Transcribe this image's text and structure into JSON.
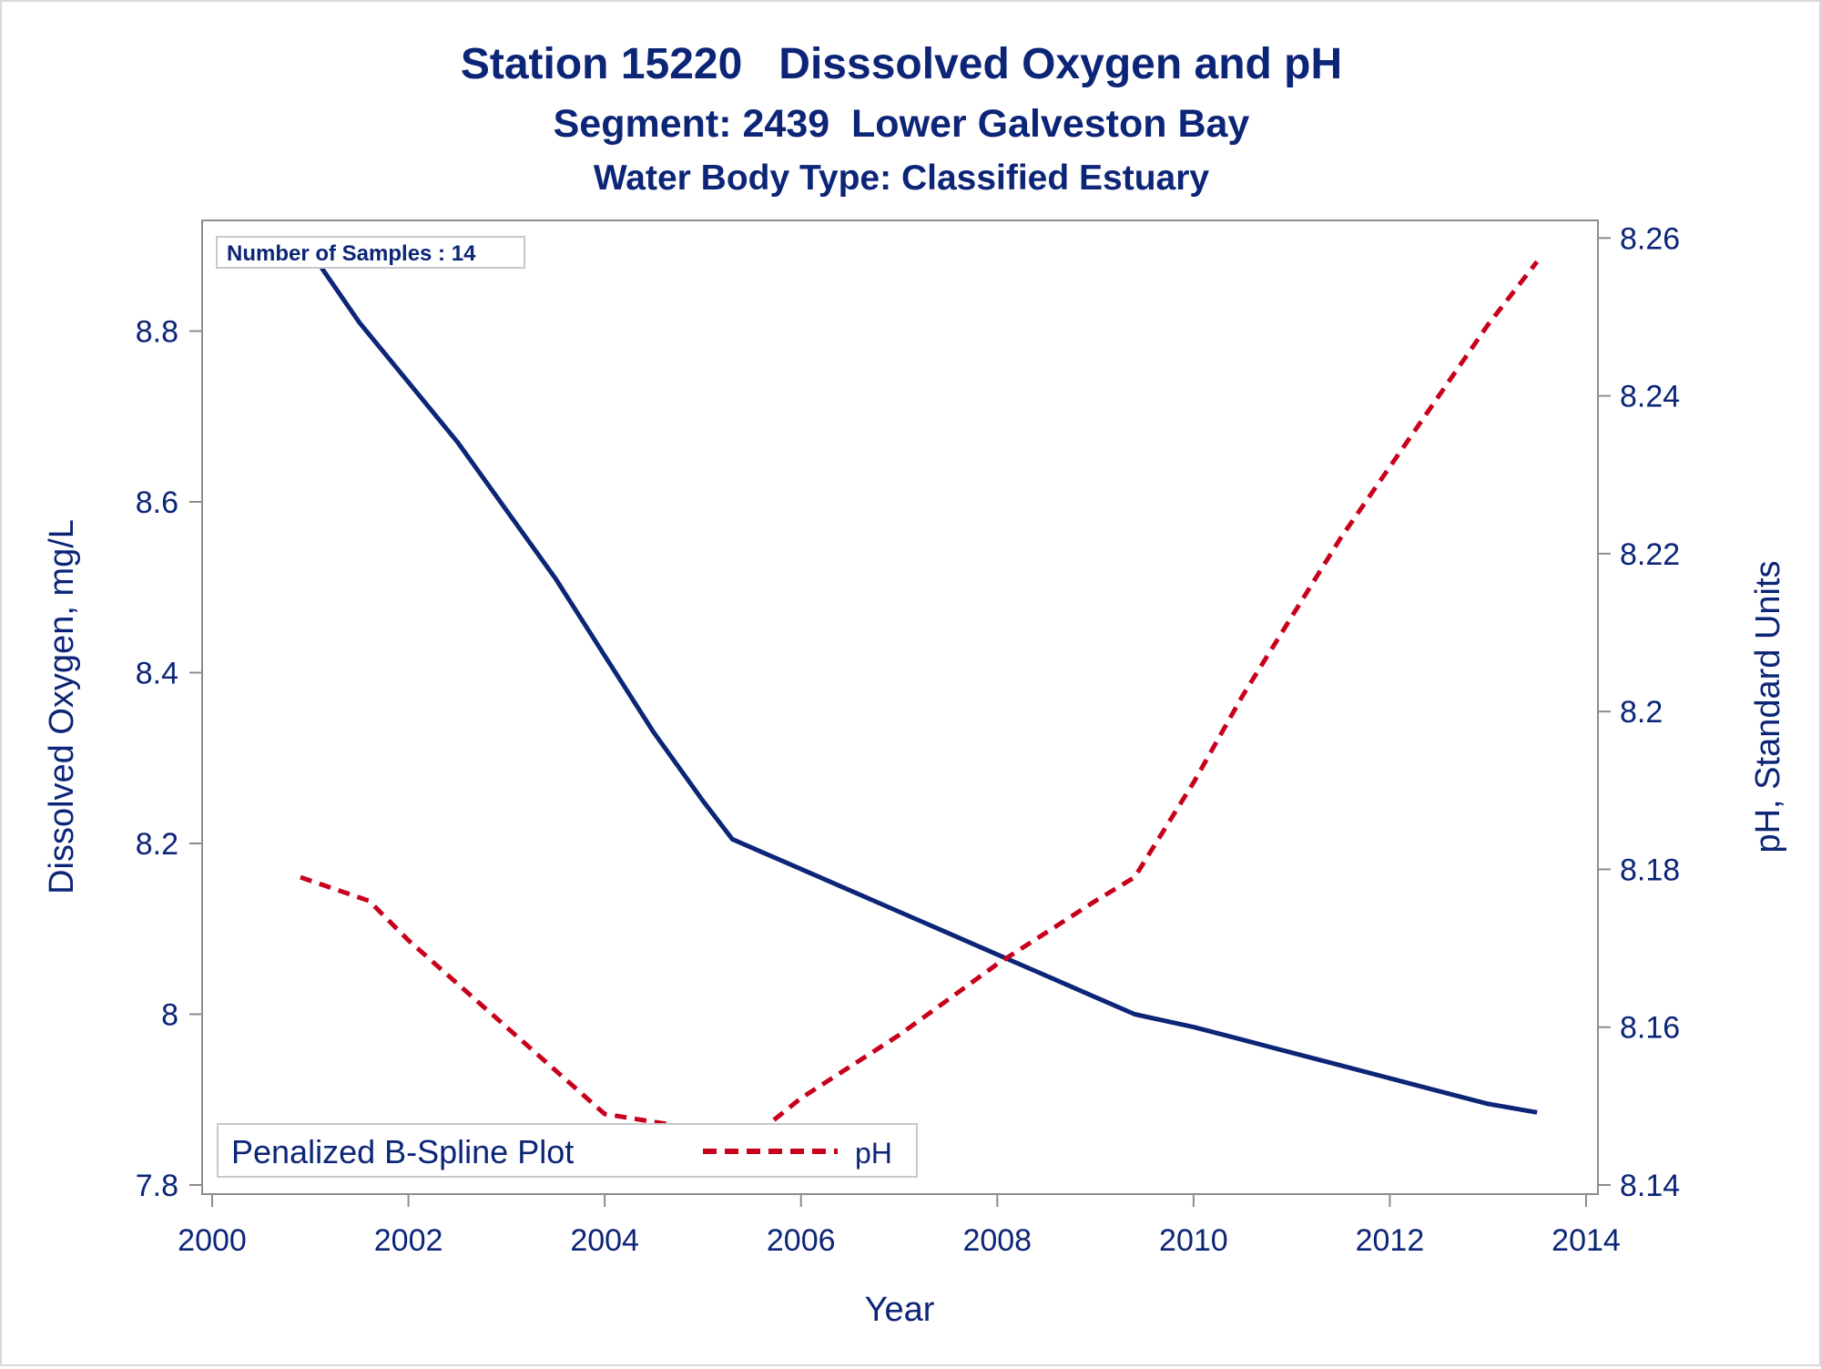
{
  "titles": {
    "line1": "Station 15220   Disssolved Oxygen and pH",
    "line2": "Segment: 2439  Lower Galveston Bay",
    "line3": "Water Body Type: Classified Estuary"
  },
  "inset_label": "Number of Samples : 14",
  "legend": {
    "title": "Penalized B-Spline Plot",
    "item_label": "pH"
  },
  "colors": {
    "text": "#0c2577",
    "do_line": "#0c2577",
    "ph_line": "#c8001b",
    "axis": "#8c8c8c"
  },
  "chart_data": {
    "type": "line",
    "title": "Station 15220   Disssolved Oxygen and pH",
    "xlabel": "Year",
    "ylabel": "Dissolved Oxygen, mg/L",
    "y2label": "pH, Standard Units",
    "xlim": [
      2000,
      2014
    ],
    "ylim": [
      7.8,
      8.92
    ],
    "y2lim": [
      8.14,
      8.262
    ],
    "x_ticks": [
      "2000",
      "2002",
      "2004",
      "2006",
      "2008",
      "2010",
      "2012",
      "2014"
    ],
    "y_ticks": [
      "7.8",
      "8",
      "8.2",
      "8.4",
      "8.6",
      "8.8"
    ],
    "y2_ticks": [
      "8.14",
      "8.16",
      "8.18",
      "8.2",
      "8.22",
      "8.24",
      "8.26"
    ],
    "legend_position": "bottom-left inside",
    "series": [
      {
        "name": "Dissolved Oxygen",
        "axis": "left",
        "style": "solid",
        "x": [
          2000.9,
          2001.5,
          2002.0,
          2002.5,
          2003.0,
          2003.5,
          2004.0,
          2004.5,
          2005.0,
          2005.3,
          2005.6,
          2006.0,
          2006.5,
          2007.0,
          2007.5,
          2008.0,
          2008.5,
          2009.0,
          2009.4,
          2010.0,
          2010.5,
          2011.0,
          2011.5,
          2012.0,
          2012.5,
          2013.0,
          2013.5
        ],
        "values": [
          8.91,
          8.81,
          8.74,
          8.67,
          8.59,
          8.51,
          8.42,
          8.33,
          8.25,
          8.205,
          8.19,
          8.17,
          8.145,
          8.12,
          8.095,
          8.07,
          8.045,
          8.02,
          8.0,
          7.985,
          7.97,
          7.955,
          7.94,
          7.925,
          7.91,
          7.895,
          7.885
        ]
      },
      {
        "name": "pH",
        "axis": "right",
        "style": "dashed",
        "x": [
          2000.9,
          2001.6,
          2002.0,
          2003.0,
          2004.0,
          2005.0,
          2005.3,
          2006.0,
          2007.0,
          2008.0,
          2009.0,
          2009.4,
          2010.0,
          2010.5,
          2011.0,
          2011.5,
          2012.0,
          2012.5,
          2013.0,
          2013.5
        ],
        "values": [
          8.179,
          8.176,
          8.171,
          8.16,
          8.149,
          8.147,
          8.144,
          8.151,
          8.159,
          8.168,
          8.176,
          8.179,
          8.191,
          8.202,
          8.212,
          8.222,
          8.231,
          8.24,
          8.249,
          8.257
        ]
      }
    ]
  }
}
